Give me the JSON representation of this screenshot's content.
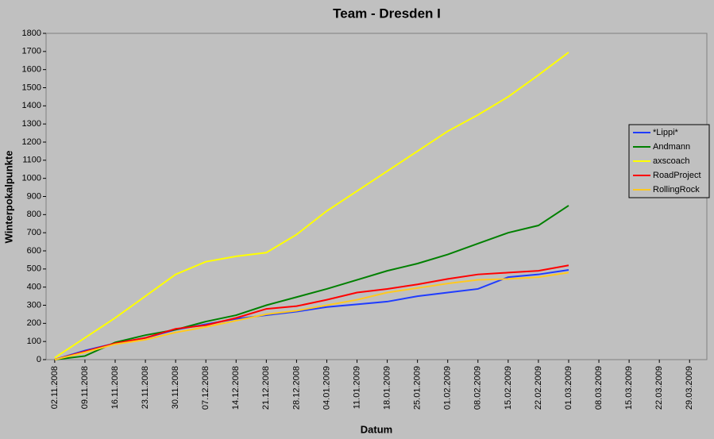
{
  "chart_data": {
    "type": "line",
    "title": "Team - Dresden I",
    "x_label": "Datum",
    "y_label": "Winterpokalpunkte",
    "x": [
      "02.11.2008",
      "09.11.2008",
      "16.11.2008",
      "23.11.2008",
      "30.11.2008",
      "07.12.2008",
      "14.12.2008",
      "21.12.2008",
      "28.12.2008",
      "04.01.2009",
      "11.01.2009",
      "18.01.2009",
      "25.01.2009",
      "01.02.2009",
      "08.02.2009",
      "15.02.2009",
      "22.02.2009",
      "01.03.2009"
    ],
    "series": [
      {
        "name": "*Lippi*",
        "color": "#1f3cff",
        "values": [
          0,
          50,
          90,
          120,
          165,
          195,
          225,
          245,
          265,
          290,
          305,
          320,
          350,
          370,
          390,
          455,
          470,
          495
        ]
      },
      {
        "name": "Andmann",
        "color": "#008000",
        "values": [
          0,
          20,
          95,
          135,
          165,
          210,
          245,
          300,
          345,
          390,
          440,
          490,
          530,
          580,
          640,
          700,
          740,
          850
        ]
      },
      {
        "name": "axscoach",
        "color": "#ffff00",
        "values": [
          10,
          120,
          230,
          350,
          470,
          540,
          570,
          590,
          690,
          820,
          930,
          1040,
          1150,
          1260,
          1350,
          1450,
          1570,
          1695
        ]
      },
      {
        "name": "RoadProject",
        "color": "#ff0000",
        "values": [
          0,
          45,
          90,
          120,
          170,
          190,
          230,
          280,
          295,
          330,
          370,
          390,
          415,
          445,
          470,
          480,
          490,
          520
        ]
      },
      {
        "name": "RollingRock",
        "color": "#ffc820",
        "values": [
          0,
          40,
          85,
          110,
          150,
          180,
          215,
          250,
          270,
          300,
          330,
          370,
          395,
          420,
          440,
          445,
          455,
          480
        ]
      }
    ],
    "xlim": [
      "31.10.2008",
      "02.04.2009"
    ],
    "xticks": [
      "02.11.2008",
      "09.11.2008",
      "16.11.2008",
      "23.11.2008",
      "30.11.2008",
      "07.12.2008",
      "14.12.2008",
      "21.12.2008",
      "28.12.2008",
      "04.01.2009",
      "11.01.2009",
      "18.01.2009",
      "25.01.2009",
      "01.02.2009",
      "08.02.2009",
      "15.02.2009",
      "22.02.2009",
      "01.03.2009",
      "08.03.2009",
      "15.03.2009",
      "22.03.2009",
      "29.03.2009"
    ],
    "ylim": [
      0,
      1800
    ],
    "yticks": [
      0,
      100,
      200,
      300,
      400,
      500,
      600,
      700,
      800,
      900,
      1000,
      1100,
      1200,
      1300,
      1400,
      1500,
      1600,
      1700,
      1800
    ],
    "legend": "right"
  }
}
